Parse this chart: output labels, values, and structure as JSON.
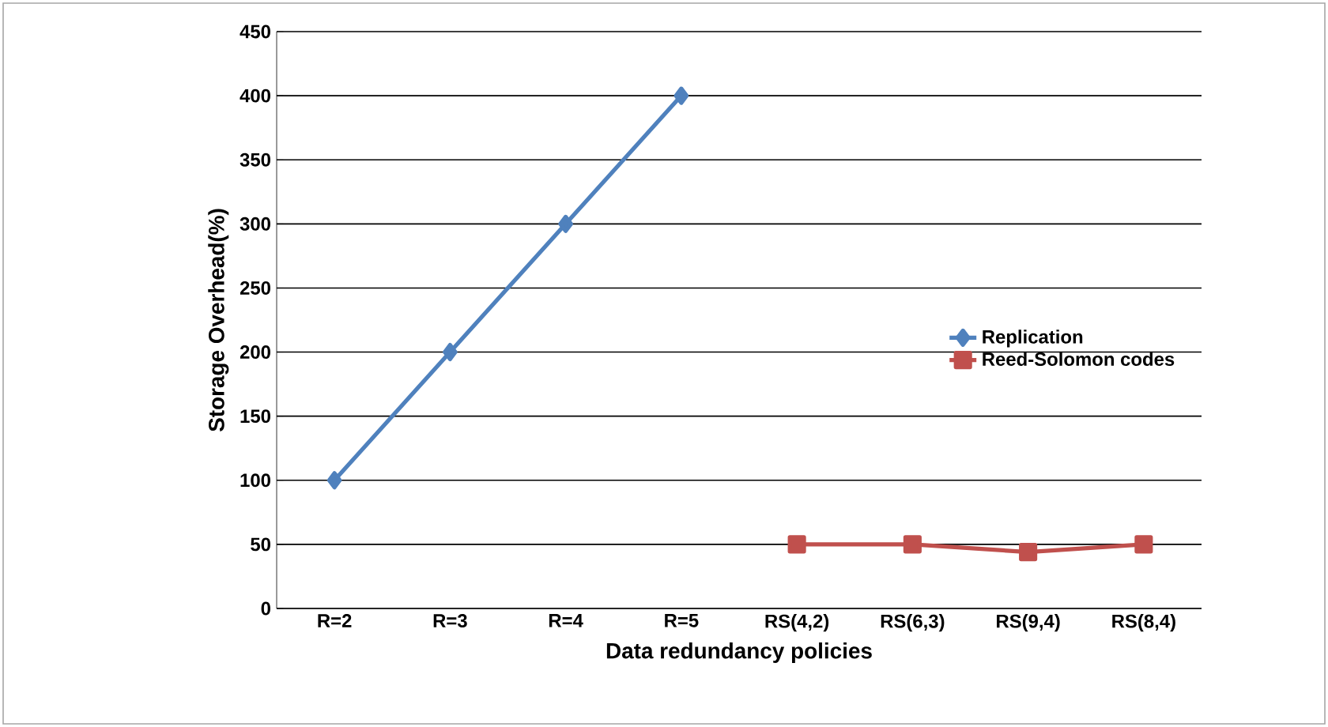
{
  "chart_data": {
    "type": "line",
    "xlabel": "Data redundancy policies",
    "ylabel": "Storage Overhead(%)",
    "categories": [
      "R=2",
      "R=3",
      "R=4",
      "R=5",
      "RS(4,2)",
      "RS(6,3)",
      "RS(9,4)",
      "RS(8,4)"
    ],
    "series": [
      {
        "name": "Replication",
        "color": "#4f81bd",
        "marker": "diamond",
        "values": [
          100,
          200,
          300,
          400,
          null,
          null,
          null,
          null
        ]
      },
      {
        "name": "Reed-Solomon codes",
        "color": "#c0504d",
        "marker": "square",
        "values": [
          null,
          null,
          null,
          null,
          50,
          50,
          44,
          50
        ]
      }
    ],
    "ylim": [
      0,
      450
    ],
    "yticks": [
      0,
      50,
      100,
      150,
      200,
      250,
      300,
      350,
      400,
      450
    ],
    "grid": "y",
    "legend": "right",
    "line_style": "solid"
  }
}
